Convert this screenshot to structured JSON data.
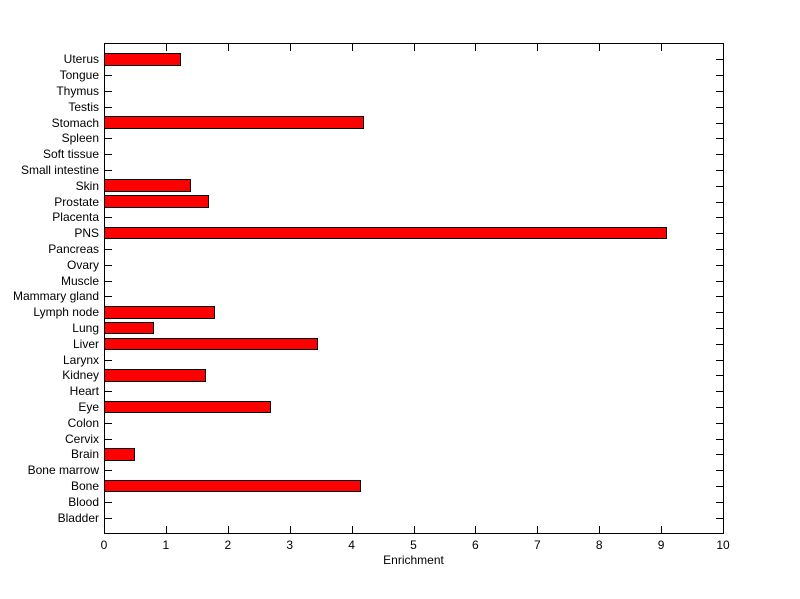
{
  "chart_data": {
    "type": "bar",
    "orientation": "horizontal",
    "title": "",
    "xlabel": "Enrichment",
    "ylabel": "",
    "xlim": [
      0,
      10
    ],
    "xticks": [
      0,
      1,
      2,
      3,
      4,
      5,
      6,
      7,
      8,
      9,
      10
    ],
    "grid": false,
    "legend": null,
    "bar_color": "#ff0000",
    "bar_edge_color": "#000000",
    "background_color": "#ffffff",
    "categories_top_to_bottom": [
      "Uterus",
      "Tongue",
      "Thymus",
      "Testis",
      "Stomach",
      "Spleen",
      "Soft tissue",
      "Small intestine",
      "Skin",
      "Prostate",
      "Placenta",
      "PNS",
      "Pancreas",
      "Ovary",
      "Muscle",
      "Mammary gland",
      "Lymph node",
      "Lung",
      "Liver",
      "Larynx",
      "Kidney",
      "Heart",
      "Eye",
      "Colon",
      "Cervix",
      "Brain",
      "Bone marrow",
      "Bone",
      "Blood",
      "Bladder"
    ],
    "values": [
      1.25,
      0,
      0,
      0,
      4.2,
      0,
      0,
      0,
      1.4,
      1.7,
      0,
      9.1,
      0,
      0,
      0,
      0,
      1.8,
      0.8,
      3.45,
      0,
      1.65,
      0,
      2.7,
      0,
      0,
      0.5,
      0,
      4.15,
      0,
      0
    ]
  }
}
